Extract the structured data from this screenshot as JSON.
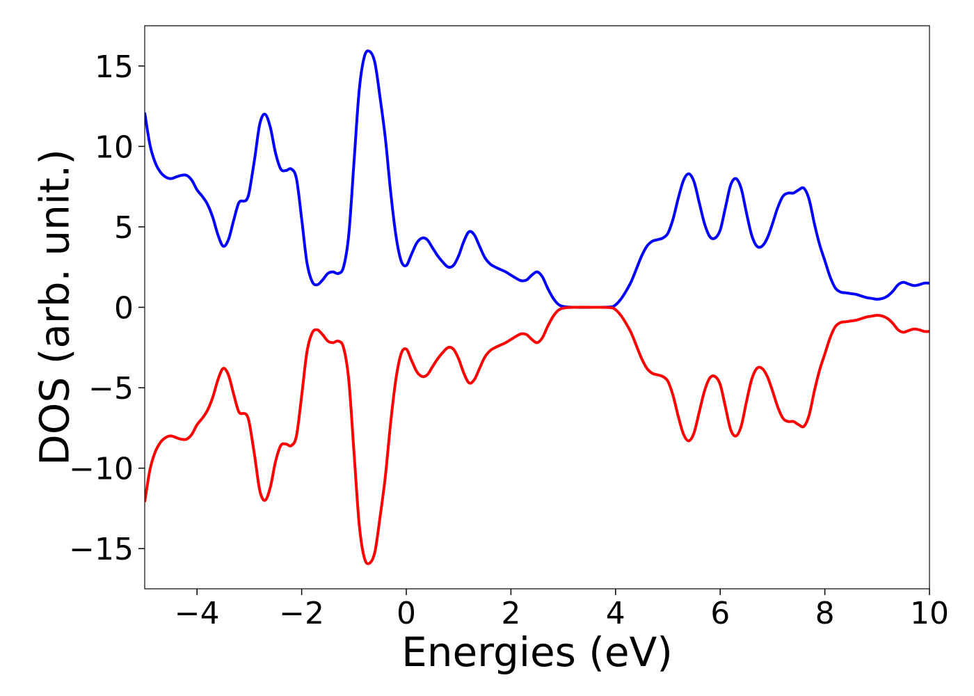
{
  "chart_data": {
    "type": "line",
    "title": "",
    "xlabel": "Energies (eV)",
    "ylabel": "DOS (arb. unit.)",
    "xlim": [
      -5,
      10
    ],
    "ylim": [
      -17.5,
      17.5
    ],
    "xticks": [
      -4,
      -2,
      0,
      2,
      4,
      6,
      8,
      10
    ],
    "xtick_labels": [
      "−4",
      "−2",
      "0",
      "2",
      "4",
      "6",
      "8",
      "10"
    ],
    "yticks": [
      -15,
      -10,
      -5,
      0,
      5,
      10,
      15
    ],
    "ytick_labels": [
      "−15",
      "−10",
      "−5",
      "0",
      "5",
      "10",
      "15"
    ],
    "grid": false,
    "legend": "none",
    "series": [
      {
        "color": "#0000ff",
        "points": [
          [
            -5.0,
            12.1
          ],
          [
            -4.9,
            10.1
          ],
          [
            -4.8,
            9.0
          ],
          [
            -4.7,
            8.4
          ],
          [
            -4.6,
            8.1
          ],
          [
            -4.5,
            8.0
          ],
          [
            -4.4,
            8.1
          ],
          [
            -4.3,
            8.2
          ],
          [
            -4.2,
            8.2
          ],
          [
            -4.1,
            7.9
          ],
          [
            -4.0,
            7.3
          ],
          [
            -3.9,
            6.9
          ],
          [
            -3.8,
            6.4
          ],
          [
            -3.7,
            5.6
          ],
          [
            -3.6,
            4.5
          ],
          [
            -3.5,
            3.8
          ],
          [
            -3.4,
            4.2
          ],
          [
            -3.3,
            5.4
          ],
          [
            -3.2,
            6.5
          ],
          [
            -3.1,
            6.6
          ],
          [
            -3.05,
            6.7
          ],
          [
            -3.0,
            7.2
          ],
          [
            -2.9,
            9.2
          ],
          [
            -2.8,
            11.4
          ],
          [
            -2.7,
            12.0
          ],
          [
            -2.6,
            11.2
          ],
          [
            -2.5,
            9.6
          ],
          [
            -2.4,
            8.6
          ],
          [
            -2.3,
            8.5
          ],
          [
            -2.2,
            8.6
          ],
          [
            -2.1,
            8.0
          ],
          [
            -2.0,
            5.5
          ],
          [
            -1.9,
            2.8
          ],
          [
            -1.8,
            1.6
          ],
          [
            -1.7,
            1.4
          ],
          [
            -1.6,
            1.7
          ],
          [
            -1.5,
            2.1
          ],
          [
            -1.4,
            2.2
          ],
          [
            -1.3,
            2.1
          ],
          [
            -1.2,
            2.5
          ],
          [
            -1.1,
            4.5
          ],
          [
            -1.0,
            9.0
          ],
          [
            -0.9,
            13.5
          ],
          [
            -0.8,
            15.6
          ],
          [
            -0.7,
            15.9
          ],
          [
            -0.6,
            15.2
          ],
          [
            -0.5,
            13.0
          ],
          [
            -0.4,
            10.5
          ],
          [
            -0.3,
            7.2
          ],
          [
            -0.2,
            4.5
          ],
          [
            -0.1,
            2.9
          ],
          [
            0.0,
            2.6
          ],
          [
            0.1,
            3.3
          ],
          [
            0.2,
            4.0
          ],
          [
            0.3,
            4.3
          ],
          [
            0.4,
            4.2
          ],
          [
            0.5,
            3.7
          ],
          [
            0.6,
            3.2
          ],
          [
            0.7,
            2.8
          ],
          [
            0.8,
            2.5
          ],
          [
            0.9,
            2.6
          ],
          [
            1.0,
            3.2
          ],
          [
            1.1,
            4.1
          ],
          [
            1.2,
            4.7
          ],
          [
            1.3,
            4.5
          ],
          [
            1.4,
            3.8
          ],
          [
            1.5,
            3.1
          ],
          [
            1.6,
            2.7
          ],
          [
            1.7,
            2.5
          ],
          [
            1.8,
            2.35
          ],
          [
            1.9,
            2.2
          ],
          [
            2.0,
            2.0
          ],
          [
            2.1,
            1.8
          ],
          [
            2.2,
            1.65
          ],
          [
            2.3,
            1.7
          ],
          [
            2.4,
            2.0
          ],
          [
            2.5,
            2.2
          ],
          [
            2.6,
            1.9
          ],
          [
            2.7,
            1.2
          ],
          [
            2.8,
            0.6
          ],
          [
            2.9,
            0.2
          ],
          [
            3.0,
            0.05
          ],
          [
            3.2,
            0.0
          ],
          [
            3.6,
            0.0
          ],
          [
            3.9,
            0.02
          ],
          [
            4.0,
            0.15
          ],
          [
            4.1,
            0.5
          ],
          [
            4.2,
            1.0
          ],
          [
            4.3,
            1.6
          ],
          [
            4.4,
            2.4
          ],
          [
            4.5,
            3.2
          ],
          [
            4.6,
            3.8
          ],
          [
            4.7,
            4.1
          ],
          [
            4.8,
            4.2
          ],
          [
            4.9,
            4.3
          ],
          [
            5.0,
            4.6
          ],
          [
            5.1,
            5.5
          ],
          [
            5.2,
            6.8
          ],
          [
            5.3,
            7.9
          ],
          [
            5.4,
            8.3
          ],
          [
            5.5,
            7.8
          ],
          [
            5.6,
            6.5
          ],
          [
            5.7,
            5.2
          ],
          [
            5.8,
            4.4
          ],
          [
            5.9,
            4.3
          ],
          [
            6.0,
            4.8
          ],
          [
            6.1,
            6.2
          ],
          [
            6.2,
            7.6
          ],
          [
            6.3,
            8.0
          ],
          [
            6.4,
            7.4
          ],
          [
            6.5,
            5.9
          ],
          [
            6.6,
            4.5
          ],
          [
            6.7,
            3.8
          ],
          [
            6.8,
            3.8
          ],
          [
            6.9,
            4.3
          ],
          [
            7.0,
            5.2
          ],
          [
            7.1,
            6.2
          ],
          [
            7.2,
            6.9
          ],
          [
            7.3,
            7.1
          ],
          [
            7.4,
            7.1
          ],
          [
            7.5,
            7.3
          ],
          [
            7.6,
            7.4
          ],
          [
            7.7,
            6.7
          ],
          [
            7.8,
            5.2
          ],
          [
            7.9,
            3.9
          ],
          [
            8.0,
            2.9
          ],
          [
            8.1,
            1.9
          ],
          [
            8.2,
            1.2
          ],
          [
            8.3,
            0.95
          ],
          [
            8.4,
            0.9
          ],
          [
            8.5,
            0.85
          ],
          [
            8.6,
            0.8
          ],
          [
            8.7,
            0.7
          ],
          [
            8.8,
            0.6
          ],
          [
            8.9,
            0.55
          ],
          [
            9.0,
            0.5
          ],
          [
            9.1,
            0.55
          ],
          [
            9.2,
            0.7
          ],
          [
            9.3,
            1.0
          ],
          [
            9.4,
            1.4
          ],
          [
            9.5,
            1.55
          ],
          [
            9.6,
            1.45
          ],
          [
            9.7,
            1.35
          ],
          [
            9.8,
            1.4
          ],
          [
            9.9,
            1.5
          ],
          [
            10.0,
            1.5
          ]
        ]
      },
      {
        "color": "#ff0000",
        "points": [
          [
            -5.0,
            -12.1
          ],
          [
            -4.9,
            -10.1
          ],
          [
            -4.8,
            -9.0
          ],
          [
            -4.7,
            -8.4
          ],
          [
            -4.6,
            -8.1
          ],
          [
            -4.5,
            -8.0
          ],
          [
            -4.4,
            -8.1
          ],
          [
            -4.3,
            -8.2
          ],
          [
            -4.2,
            -8.2
          ],
          [
            -4.1,
            -7.9
          ],
          [
            -4.0,
            -7.3
          ],
          [
            -3.9,
            -6.9
          ],
          [
            -3.8,
            -6.4
          ],
          [
            -3.7,
            -5.6
          ],
          [
            -3.6,
            -4.5
          ],
          [
            -3.5,
            -3.8
          ],
          [
            -3.4,
            -4.2
          ],
          [
            -3.3,
            -5.4
          ],
          [
            -3.2,
            -6.5
          ],
          [
            -3.1,
            -6.6
          ],
          [
            -3.05,
            -6.7
          ],
          [
            -3.0,
            -7.2
          ],
          [
            -2.9,
            -9.2
          ],
          [
            -2.8,
            -11.4
          ],
          [
            -2.7,
            -12.0
          ],
          [
            -2.6,
            -11.2
          ],
          [
            -2.5,
            -9.6
          ],
          [
            -2.4,
            -8.6
          ],
          [
            -2.3,
            -8.5
          ],
          [
            -2.2,
            -8.6
          ],
          [
            -2.1,
            -8.0
          ],
          [
            -2.0,
            -5.5
          ],
          [
            -1.9,
            -2.8
          ],
          [
            -1.8,
            -1.6
          ],
          [
            -1.7,
            -1.4
          ],
          [
            -1.6,
            -1.7
          ],
          [
            -1.5,
            -2.1
          ],
          [
            -1.4,
            -2.2
          ],
          [
            -1.3,
            -2.1
          ],
          [
            -1.2,
            -2.5
          ],
          [
            -1.1,
            -4.5
          ],
          [
            -1.0,
            -9.0
          ],
          [
            -0.9,
            -13.5
          ],
          [
            -0.8,
            -15.6
          ],
          [
            -0.7,
            -15.9
          ],
          [
            -0.6,
            -15.2
          ],
          [
            -0.5,
            -13.0
          ],
          [
            -0.4,
            -10.5
          ],
          [
            -0.3,
            -7.2
          ],
          [
            -0.2,
            -4.5
          ],
          [
            -0.1,
            -2.9
          ],
          [
            0.0,
            -2.6
          ],
          [
            0.1,
            -3.3
          ],
          [
            0.2,
            -4.0
          ],
          [
            0.3,
            -4.3
          ],
          [
            0.4,
            -4.2
          ],
          [
            0.5,
            -3.7
          ],
          [
            0.6,
            -3.2
          ],
          [
            0.7,
            -2.8
          ],
          [
            0.8,
            -2.5
          ],
          [
            0.9,
            -2.6
          ],
          [
            1.0,
            -3.2
          ],
          [
            1.1,
            -4.1
          ],
          [
            1.2,
            -4.7
          ],
          [
            1.3,
            -4.5
          ],
          [
            1.4,
            -3.8
          ],
          [
            1.5,
            -3.1
          ],
          [
            1.6,
            -2.7
          ],
          [
            1.7,
            -2.5
          ],
          [
            1.8,
            -2.35
          ],
          [
            1.9,
            -2.2
          ],
          [
            2.0,
            -2.0
          ],
          [
            2.1,
            -1.8
          ],
          [
            2.2,
            -1.65
          ],
          [
            2.3,
            -1.7
          ],
          [
            2.4,
            -2.0
          ],
          [
            2.5,
            -2.2
          ],
          [
            2.6,
            -1.9
          ],
          [
            2.7,
            -1.2
          ],
          [
            2.8,
            -0.6
          ],
          [
            2.9,
            -0.2
          ],
          [
            3.0,
            -0.05
          ],
          [
            3.2,
            0.0
          ],
          [
            3.6,
            0.0
          ],
          [
            3.9,
            -0.02
          ],
          [
            4.0,
            -0.15
          ],
          [
            4.1,
            -0.5
          ],
          [
            4.2,
            -1.0
          ],
          [
            4.3,
            -1.6
          ],
          [
            4.4,
            -2.4
          ],
          [
            4.5,
            -3.2
          ],
          [
            4.6,
            -3.8
          ],
          [
            4.7,
            -4.1
          ],
          [
            4.8,
            -4.2
          ],
          [
            4.9,
            -4.3
          ],
          [
            5.0,
            -4.6
          ],
          [
            5.1,
            -5.5
          ],
          [
            5.2,
            -6.8
          ],
          [
            5.3,
            -7.9
          ],
          [
            5.4,
            -8.3
          ],
          [
            5.5,
            -7.8
          ],
          [
            5.6,
            -6.5
          ],
          [
            5.7,
            -5.2
          ],
          [
            5.8,
            -4.4
          ],
          [
            5.9,
            -4.3
          ],
          [
            6.0,
            -4.8
          ],
          [
            6.1,
            -6.2
          ],
          [
            6.2,
            -7.6
          ],
          [
            6.3,
            -8.0
          ],
          [
            6.4,
            -7.4
          ],
          [
            6.5,
            -5.9
          ],
          [
            6.6,
            -4.5
          ],
          [
            6.7,
            -3.8
          ],
          [
            6.8,
            -3.8
          ],
          [
            6.9,
            -4.3
          ],
          [
            7.0,
            -5.2
          ],
          [
            7.1,
            -6.2
          ],
          [
            7.2,
            -6.9
          ],
          [
            7.3,
            -7.1
          ],
          [
            7.4,
            -7.1
          ],
          [
            7.5,
            -7.3
          ],
          [
            7.6,
            -7.4
          ],
          [
            7.7,
            -6.7
          ],
          [
            7.8,
            -5.2
          ],
          [
            7.9,
            -3.9
          ],
          [
            8.0,
            -2.9
          ],
          [
            8.1,
            -1.9
          ],
          [
            8.2,
            -1.2
          ],
          [
            8.3,
            -0.95
          ],
          [
            8.4,
            -0.9
          ],
          [
            8.5,
            -0.85
          ],
          [
            8.6,
            -0.8
          ],
          [
            8.7,
            -0.7
          ],
          [
            8.8,
            -0.6
          ],
          [
            8.9,
            -0.55
          ],
          [
            9.0,
            -0.5
          ],
          [
            9.1,
            -0.55
          ],
          [
            9.2,
            -0.7
          ],
          [
            9.3,
            -1.0
          ],
          [
            9.4,
            -1.4
          ],
          [
            9.5,
            -1.55
          ],
          [
            9.6,
            -1.45
          ],
          [
            9.7,
            -1.35
          ],
          [
            9.8,
            -1.4
          ],
          [
            9.9,
            -1.5
          ],
          [
            10.0,
            -1.5
          ]
        ]
      }
    ]
  }
}
